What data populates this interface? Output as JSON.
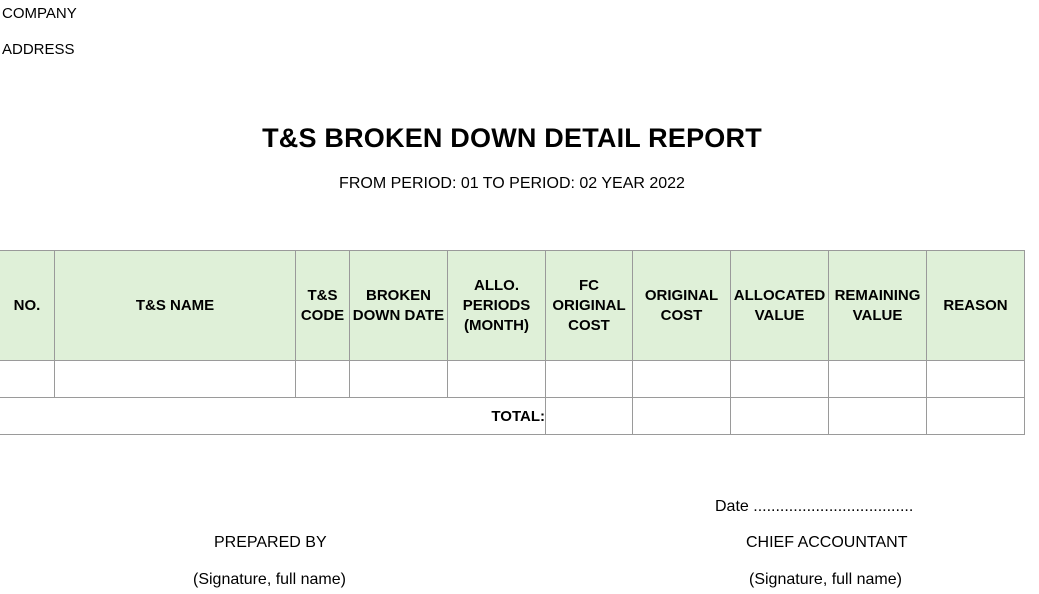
{
  "header": {
    "company": "COMPANY",
    "address": "ADDRESS"
  },
  "report": {
    "title": "T&S BROKEN DOWN DETAIL REPORT",
    "period": "FROM PERIOD: 01 TO PERIOD: 02 YEAR 2022"
  },
  "table": {
    "columns": [
      {
        "key": "no",
        "lines": [
          "NO."
        ]
      },
      {
        "key": "name",
        "lines": [
          "T&S NAME"
        ]
      },
      {
        "key": "code",
        "lines": [
          "T&S",
          "CODE"
        ]
      },
      {
        "key": "broken_down_date",
        "lines": [
          "BROKEN",
          "DOWN DATE"
        ]
      },
      {
        "key": "allo_periods",
        "lines": [
          "ALLO.",
          "PERIODS",
          "(MONTH)"
        ]
      },
      {
        "key": "fc_original_cost",
        "lines": [
          "FC",
          "ORIGINAL",
          "COST"
        ]
      },
      {
        "key": "original_cost",
        "lines": [
          "ORIGINAL",
          "COST"
        ]
      },
      {
        "key": "allocated_value",
        "lines": [
          "ALLOCATED",
          "VALUE"
        ]
      },
      {
        "key": "remaining_value",
        "lines": [
          "REMAINING",
          "VALUE"
        ]
      },
      {
        "key": "reason",
        "lines": [
          "REASON"
        ]
      }
    ],
    "total_label": "TOTAL:"
  },
  "footer": {
    "date_line": "Date ....................................",
    "prepared_by": "PREPARED BY",
    "chief_accountant": "CHIEF ACCOUNTANT",
    "signature_left": "(Signature, full name)",
    "signature_right": "(Signature, full name)"
  }
}
